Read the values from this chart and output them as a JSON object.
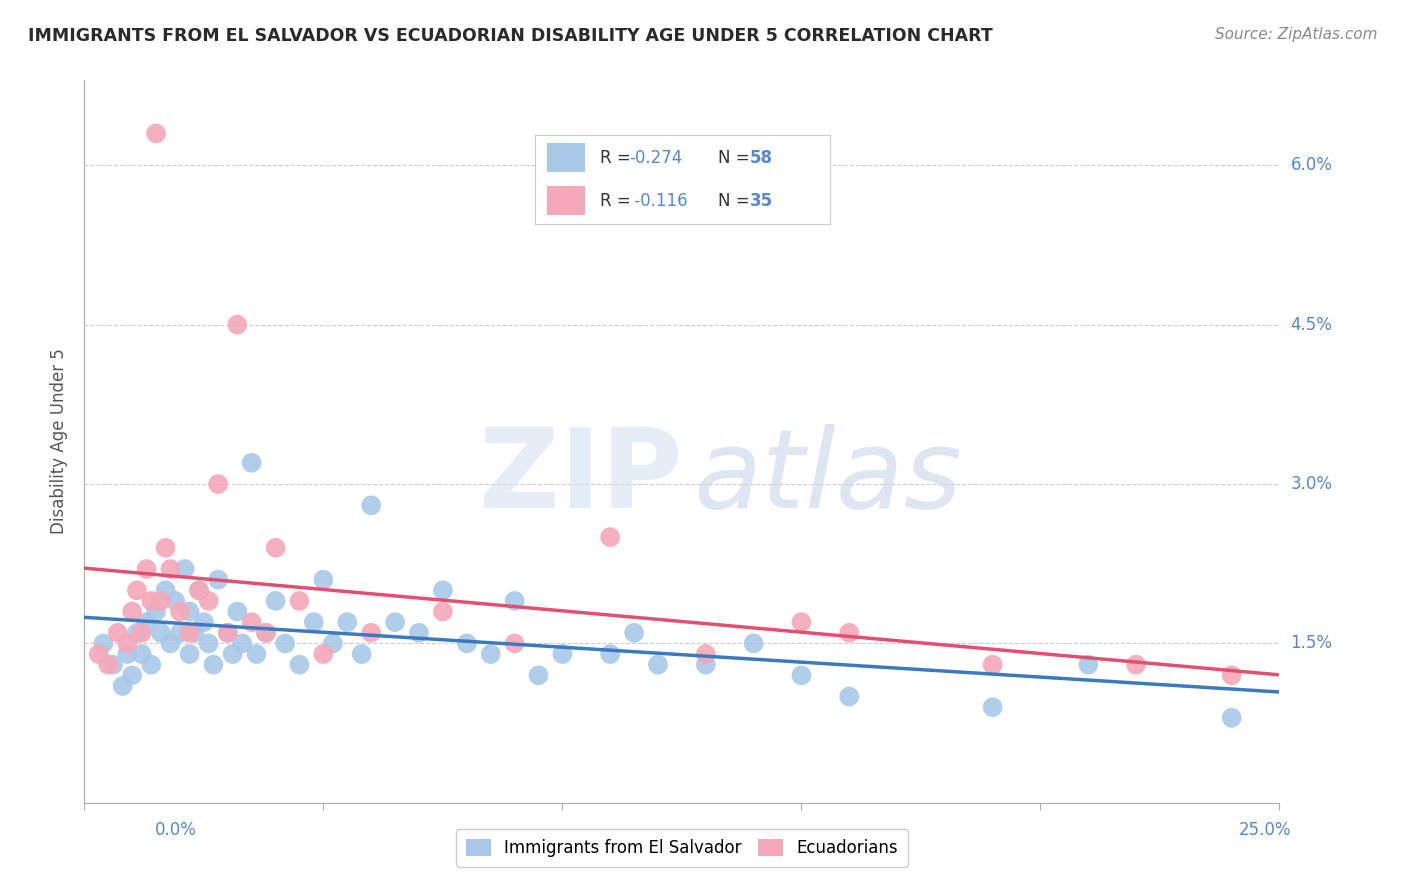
{
  "title": "IMMIGRANTS FROM EL SALVADOR VS ECUADORIAN DISABILITY AGE UNDER 5 CORRELATION CHART",
  "source": "Source: ZipAtlas.com",
  "ylabel": "Disability Age Under 5",
  "legend_blue_label": "Immigrants from El Salvador",
  "legend_pink_label": "Ecuadorians",
  "r_blue": -0.274,
  "n_blue": 58,
  "r_pink": -0.116,
  "n_pink": 35,
  "xlim": [
    0.0,
    0.25
  ],
  "ylim": [
    0.0,
    0.068
  ],
  "yticks": [
    0.015,
    0.03,
    0.045,
    0.06
  ],
  "ytick_labels": [
    "1.5%",
    "3.0%",
    "4.5%",
    "6.0%"
  ],
  "background_color": "#ffffff",
  "grid_color": "#cccccc",
  "blue_color": "#a8c8e8",
  "pink_color": "#f4a8b8",
  "blue_line_color": "#3a7abf",
  "pink_line_color": "#e05070",
  "tick_label_color": "#5588cc",
  "title_color": "#2a2a2a",
  "source_color": "#888888",
  "blue_scatter_x": [
    0.004,
    0.006,
    0.008,
    0.009,
    0.01,
    0.011,
    0.012,
    0.013,
    0.014,
    0.015,
    0.016,
    0.017,
    0.018,
    0.019,
    0.02,
    0.021,
    0.022,
    0.022,
    0.023,
    0.024,
    0.025,
    0.026,
    0.027,
    0.028,
    0.03,
    0.031,
    0.032,
    0.033,
    0.035,
    0.036,
    0.038,
    0.04,
    0.042,
    0.045,
    0.048,
    0.05,
    0.052,
    0.055,
    0.058,
    0.06,
    0.065,
    0.07,
    0.075,
    0.08,
    0.085,
    0.09,
    0.095,
    0.1,
    0.11,
    0.115,
    0.12,
    0.13,
    0.14,
    0.15,
    0.16,
    0.19,
    0.21,
    0.24
  ],
  "blue_scatter_y": [
    0.015,
    0.013,
    0.011,
    0.014,
    0.012,
    0.016,
    0.014,
    0.017,
    0.013,
    0.018,
    0.016,
    0.02,
    0.015,
    0.019,
    0.016,
    0.022,
    0.014,
    0.018,
    0.016,
    0.02,
    0.017,
    0.015,
    0.013,
    0.021,
    0.016,
    0.014,
    0.018,
    0.015,
    0.032,
    0.014,
    0.016,
    0.019,
    0.015,
    0.013,
    0.017,
    0.021,
    0.015,
    0.017,
    0.014,
    0.028,
    0.017,
    0.016,
    0.02,
    0.015,
    0.014,
    0.019,
    0.012,
    0.014,
    0.014,
    0.016,
    0.013,
    0.013,
    0.015,
    0.012,
    0.01,
    0.009,
    0.013,
    0.008
  ],
  "pink_scatter_x": [
    0.003,
    0.005,
    0.007,
    0.009,
    0.01,
    0.011,
    0.012,
    0.013,
    0.014,
    0.015,
    0.016,
    0.017,
    0.018,
    0.02,
    0.022,
    0.024,
    0.026,
    0.028,
    0.03,
    0.032,
    0.035,
    0.038,
    0.04,
    0.045,
    0.05,
    0.06,
    0.075,
    0.09,
    0.11,
    0.13,
    0.15,
    0.16,
    0.19,
    0.22,
    0.24
  ],
  "pink_scatter_y": [
    0.014,
    0.013,
    0.016,
    0.015,
    0.018,
    0.02,
    0.016,
    0.022,
    0.019,
    0.063,
    0.019,
    0.024,
    0.022,
    0.018,
    0.016,
    0.02,
    0.019,
    0.03,
    0.016,
    0.045,
    0.017,
    0.016,
    0.024,
    0.019,
    0.014,
    0.016,
    0.018,
    0.015,
    0.025,
    0.014,
    0.017,
    0.016,
    0.013,
    0.013,
    0.012
  ]
}
